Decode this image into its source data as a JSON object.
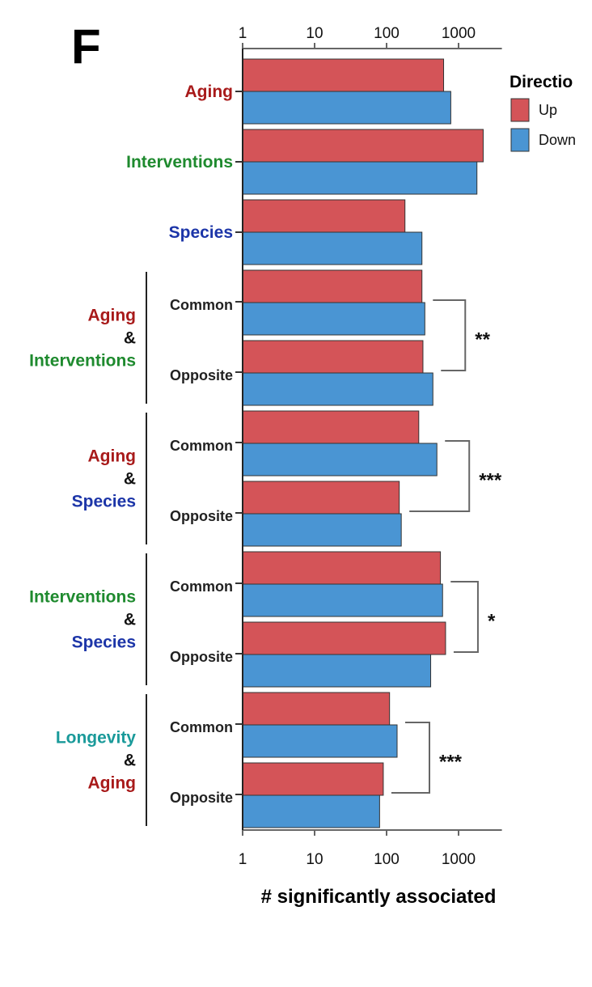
{
  "panel_label": "F",
  "colors": {
    "up": "#d45458",
    "down": "#4a95d3",
    "aging": "#a81a1a",
    "interventions": "#1e8a2e",
    "species": "#1c35a8",
    "longevity": "#1a9a9a"
  },
  "chart_data": {
    "type": "bar",
    "orientation": "horizontal",
    "xscale": "log",
    "xlim": [
      1,
      4000
    ],
    "xticks": [
      "1",
      "10",
      "100",
      "1000"
    ],
    "xlabel": "# significantly associated",
    "legend": {
      "title": "Directio",
      "placement": "top-right",
      "entries": [
        "Up",
        "Down"
      ]
    },
    "groups": [
      {
        "lines": [
          {
            "text": "Aging",
            "color": "aging"
          }
        ],
        "rows": [
          {
            "label": "",
            "up": 620,
            "down": 780
          }
        ]
      },
      {
        "lines": [
          {
            "text": "Interventions",
            "color": "interventions"
          }
        ],
        "rows": [
          {
            "label": "",
            "up": 2200,
            "down": 1800
          }
        ]
      },
      {
        "lines": [
          {
            "text": "Species",
            "color": "species"
          }
        ],
        "rows": [
          {
            "label": "",
            "up": 180,
            "down": 310
          }
        ]
      },
      {
        "lines": [
          {
            "text": "Aging",
            "color": "aging"
          },
          {
            "text": "&",
            "color": "amp"
          },
          {
            "text": "Interventions",
            "color": "interventions"
          }
        ],
        "rows": [
          {
            "label": "Common",
            "up": 310,
            "down": 340
          },
          {
            "label": "Opposite",
            "up": 320,
            "down": 440
          }
        ],
        "significance": "**"
      },
      {
        "lines": [
          {
            "text": "Aging",
            "color": "aging"
          },
          {
            "text": "&",
            "color": "amp"
          },
          {
            "text": "Species",
            "color": "species"
          }
        ],
        "rows": [
          {
            "label": "Common",
            "up": 280,
            "down": 500
          },
          {
            "label": "Opposite",
            "up": 150,
            "down": 160
          }
        ],
        "significance": "***"
      },
      {
        "lines": [
          {
            "text": "Interventions",
            "color": "interventions"
          },
          {
            "text": "&",
            "color": "amp"
          },
          {
            "text": "Species",
            "color": "species"
          }
        ],
        "rows": [
          {
            "label": "Common",
            "up": 560,
            "down": 600
          },
          {
            "label": "Opposite",
            "up": 660,
            "down": 410
          }
        ],
        "significance": "*"
      },
      {
        "lines": [
          {
            "text": "Longevity",
            "color": "longevity"
          },
          {
            "text": "&",
            "color": "amp"
          },
          {
            "text": "Aging",
            "color": "aging"
          }
        ],
        "rows": [
          {
            "label": "Common",
            "up": 110,
            "down": 140
          },
          {
            "label": "Opposite",
            "up": 90,
            "down": 80
          }
        ],
        "significance": "***"
      }
    ]
  }
}
